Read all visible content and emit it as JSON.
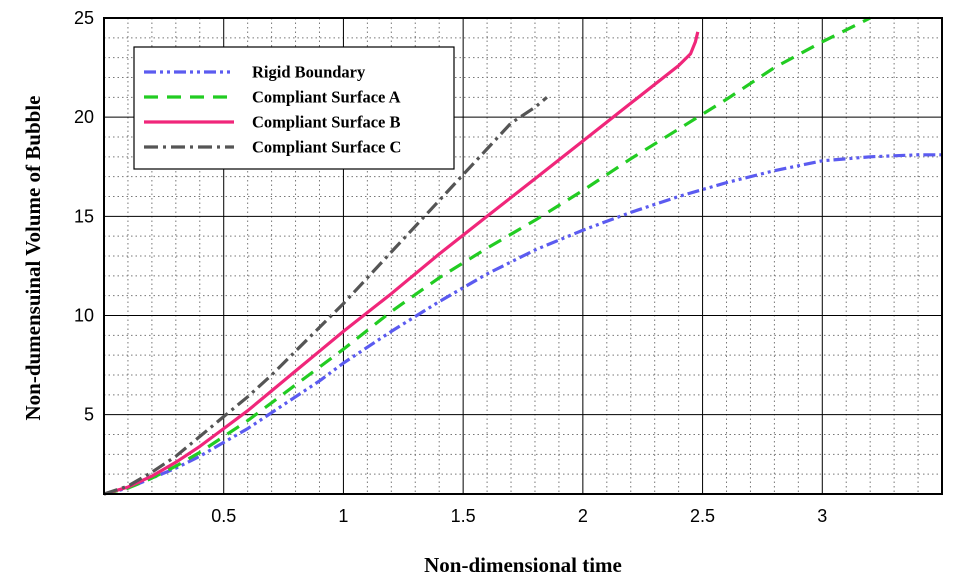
{
  "chart_data": {
    "type": "line",
    "title": "",
    "xlabel": "Non-dimensional time",
    "ylabel": "Non-dumensuinal Volume of Bubble",
    "xlim": [
      0,
      3.5
    ],
    "ylim": [
      1,
      25
    ],
    "x_ticks": [
      0.5,
      1,
      1.5,
      2,
      2.5,
      3
    ],
    "x_tick_labels": [
      "0.5",
      "1",
      "1.5",
      "2",
      "2.5",
      "3"
    ],
    "y_ticks": [
      5,
      10,
      15,
      20,
      25
    ],
    "y_tick_labels": [
      "5",
      "10",
      "15",
      "20",
      "25"
    ],
    "grid": true,
    "legend_position": "top-left",
    "series": [
      {
        "name": "Rigid Boundary",
        "color": "#5b5bf0",
        "dash": "dash-dot-dot",
        "x": [
          0.0,
          0.1,
          0.2,
          0.3,
          0.4,
          0.5,
          0.6,
          0.7,
          0.8,
          0.9,
          1.0,
          1.2,
          1.4,
          1.6,
          1.8,
          2.0,
          2.2,
          2.4,
          2.6,
          2.8,
          3.0,
          3.2,
          3.4,
          3.5
        ],
        "y": [
          1.0,
          1.3,
          1.8,
          2.3,
          2.9,
          3.6,
          4.3,
          5.1,
          5.9,
          6.7,
          7.6,
          9.2,
          10.7,
          12.1,
          13.3,
          14.3,
          15.2,
          16.0,
          16.7,
          17.3,
          17.8,
          18.0,
          18.1,
          18.1
        ]
      },
      {
        "name": "Compliant Surface A",
        "color": "#22cc22",
        "dash": "dash",
        "x": [
          0.0,
          0.1,
          0.2,
          0.3,
          0.4,
          0.5,
          0.6,
          0.7,
          0.8,
          0.9,
          1.0,
          1.2,
          1.4,
          1.6,
          1.8,
          2.0,
          2.2,
          2.4,
          2.6,
          2.8,
          3.0,
          3.2
        ],
        "y": [
          1.0,
          1.3,
          1.8,
          2.4,
          3.1,
          3.9,
          4.7,
          5.6,
          6.5,
          7.4,
          8.3,
          10.2,
          11.9,
          13.4,
          14.8,
          16.3,
          17.9,
          19.4,
          20.9,
          22.5,
          23.8,
          25.0
        ]
      },
      {
        "name": "Compliant Surface B",
        "color": "#f0267a",
        "dash": "solid",
        "x": [
          0.0,
          0.1,
          0.2,
          0.3,
          0.4,
          0.5,
          0.6,
          0.7,
          0.8,
          0.9,
          1.0,
          1.2,
          1.4,
          1.6,
          1.8,
          2.0,
          2.2,
          2.4,
          2.45,
          2.47,
          2.48
        ],
        "y": [
          1.0,
          1.35,
          1.9,
          2.6,
          3.4,
          4.3,
          5.2,
          6.2,
          7.2,
          8.2,
          9.2,
          11.1,
          13.1,
          15.0,
          16.9,
          18.8,
          20.7,
          22.6,
          23.2,
          23.8,
          24.3
        ]
      },
      {
        "name": "Compliant Surface C",
        "color": "#555555",
        "dash": "dash-dot",
        "x": [
          0.0,
          0.1,
          0.2,
          0.3,
          0.4,
          0.5,
          0.6,
          0.7,
          0.8,
          0.9,
          1.0,
          1.1,
          1.2,
          1.3,
          1.4,
          1.5,
          1.6,
          1.7,
          1.8,
          1.85
        ],
        "y": [
          1.0,
          1.4,
          2.1,
          2.9,
          3.9,
          4.9,
          5.9,
          7.0,
          8.2,
          9.4,
          10.6,
          11.9,
          13.2,
          14.5,
          15.8,
          17.1,
          18.4,
          19.7,
          20.5,
          21.0
        ]
      }
    ]
  }
}
